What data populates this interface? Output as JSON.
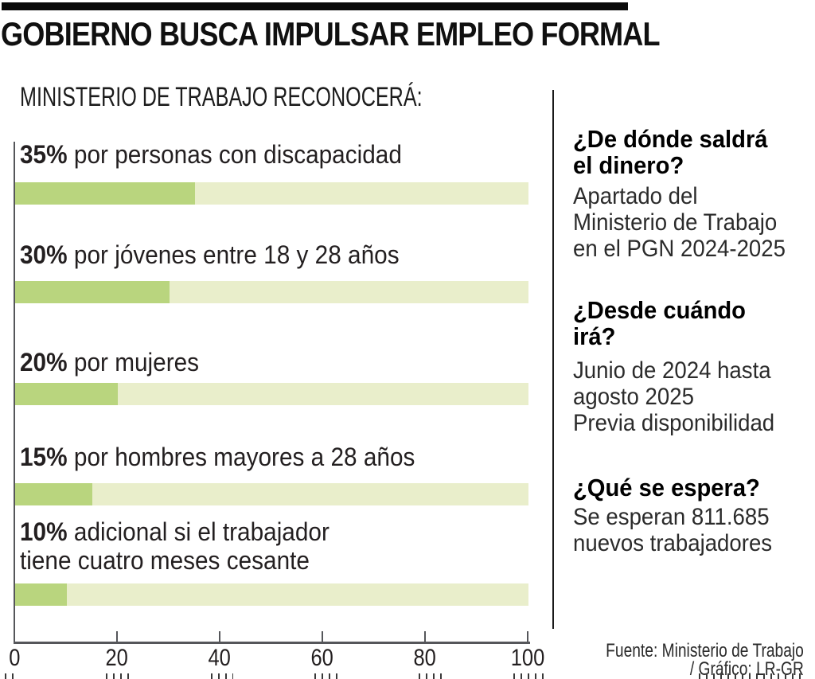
{
  "page": {
    "title": "GOBIERNO BUSCA IMPULSAR EMPLEO FORMAL",
    "subtitle": "MINISTERIO DE TRABAJO RECONOCERÁ:"
  },
  "chart_data": {
    "type": "bar",
    "orientation": "horizontal",
    "categories": [
      "35% por  personas con discapacidad",
      "30% por jóvenes entre 18 y 28 años",
      "20% por mujeres",
      "15% por hombres mayores a 28 años",
      "10% adicional si el trabajador tiene cuatro meses cesante"
    ],
    "values": [
      35,
      30,
      20,
      15,
      10
    ],
    "title": "MINISTERIO DE TRABAJO RECONOCERÁ:",
    "xlabel": "",
    "ylabel": "",
    "xlim": [
      0,
      100
    ],
    "x_ticks": [
      0,
      20,
      40,
      60,
      80,
      100
    ],
    "grid": false,
    "legend": "none",
    "bar_fill_color": "#b9d57e",
    "bar_track_color": "#e9eecb"
  },
  "bars": [
    {
      "pct": "35%",
      "label": "por  personas con discapacidad"
    },
    {
      "pct": "30%",
      "label": "por jóvenes entre 18 y 28 años"
    },
    {
      "pct": "20%",
      "label": "por mujeres"
    },
    {
      "pct": "15%",
      "label": "por hombres mayores a 28 años"
    },
    {
      "pct": "10%",
      "label": "adicional si el trabajador",
      "label2": "tiene cuatro meses cesante"
    }
  ],
  "axis": {
    "ticks": [
      "0",
      "20",
      "40",
      "60",
      "80",
      "100"
    ]
  },
  "info": [
    {
      "heading_lines": [
        "¿De dónde saldrá",
        "el dinero?"
      ],
      "body_lines": [
        "Apartado del",
        "Ministerio de Trabajo",
        "en el PGN 2024-2025"
      ]
    },
    {
      "heading_lines": [
        "¿Desde cuándo",
        "irá?"
      ],
      "body_lines": [
        "Junio de 2024 hasta",
        "agosto 2025",
        "Previa disponibilidad"
      ]
    },
    {
      "heading_lines": [
        "¿Qué se espera?"
      ],
      "body_lines": [
        "Se esperan 811.685",
        "nuevos trabajadores"
      ]
    }
  ],
  "source": {
    "line1": "Fuente: Ministerio de Trabajo",
    "line2": "/ Gráfico: LR-GR"
  },
  "colors": {
    "bar_fill": "#b9d57e",
    "bar_track": "#e9eecb",
    "axis": "#55565a",
    "text": "#231f20"
  }
}
